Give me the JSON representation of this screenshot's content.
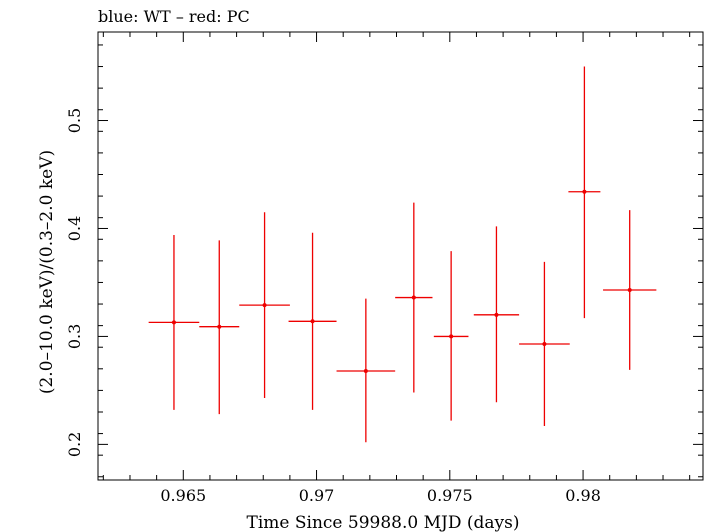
{
  "chart_data": {
    "type": "scatter",
    "title": "blue: WT – red: PC",
    "xlabel": "Time Since 59988.0 MJD (days)",
    "ylabel": "(2.0–10.0 keV)/(0.3–2.0 keV)",
    "xlim": [
      0.9618,
      0.9845
    ],
    "ylim": [
      0.167,
      0.582
    ],
    "x_ticks": [
      0.965,
      0.97,
      0.975,
      0.98
    ],
    "x_tick_labels": [
      "0.965",
      "0.97",
      "0.975",
      "0.98"
    ],
    "y_ticks": [
      0.2,
      0.3,
      0.4,
      0.5
    ],
    "y_tick_labels": [
      "0.2",
      "0.3",
      "0.4",
      "0.5"
    ],
    "grid": false,
    "series": [
      {
        "color": "#ee0000",
        "points": [
          {
            "x": 0.96465,
            "xerr": 0.00095,
            "y": 0.313,
            "ylo": 0.232,
            "yhi": 0.394
          },
          {
            "x": 0.96635,
            "xerr": 0.00075,
            "y": 0.309,
            "ylo": 0.228,
            "yhi": 0.389
          },
          {
            "x": 0.96805,
            "xerr": 0.00095,
            "y": 0.329,
            "ylo": 0.243,
            "yhi": 0.415
          },
          {
            "x": 0.96985,
            "xerr": 0.0009,
            "y": 0.314,
            "ylo": 0.232,
            "yhi": 0.396
          },
          {
            "x": 0.97185,
            "xerr": 0.0011,
            "y": 0.268,
            "ylo": 0.202,
            "yhi": 0.335
          },
          {
            "x": 0.97365,
            "xerr": 0.0007,
            "y": 0.336,
            "ylo": 0.248,
            "yhi": 0.424
          },
          {
            "x": 0.97505,
            "xerr": 0.00065,
            "y": 0.3,
            "ylo": 0.222,
            "yhi": 0.379
          },
          {
            "x": 0.97675,
            "xerr": 0.00085,
            "y": 0.32,
            "ylo": 0.239,
            "yhi": 0.402
          },
          {
            "x": 0.97855,
            "xerr": 0.00095,
            "y": 0.293,
            "ylo": 0.217,
            "yhi": 0.369
          },
          {
            "x": 0.98005,
            "xerr": 0.0006,
            "y": 0.434,
            "ylo": 0.317,
            "yhi": 0.55
          },
          {
            "x": 0.98175,
            "xerr": 0.001,
            "y": 0.343,
            "ylo": 0.269,
            "yhi": 0.417
          }
        ]
      }
    ]
  }
}
